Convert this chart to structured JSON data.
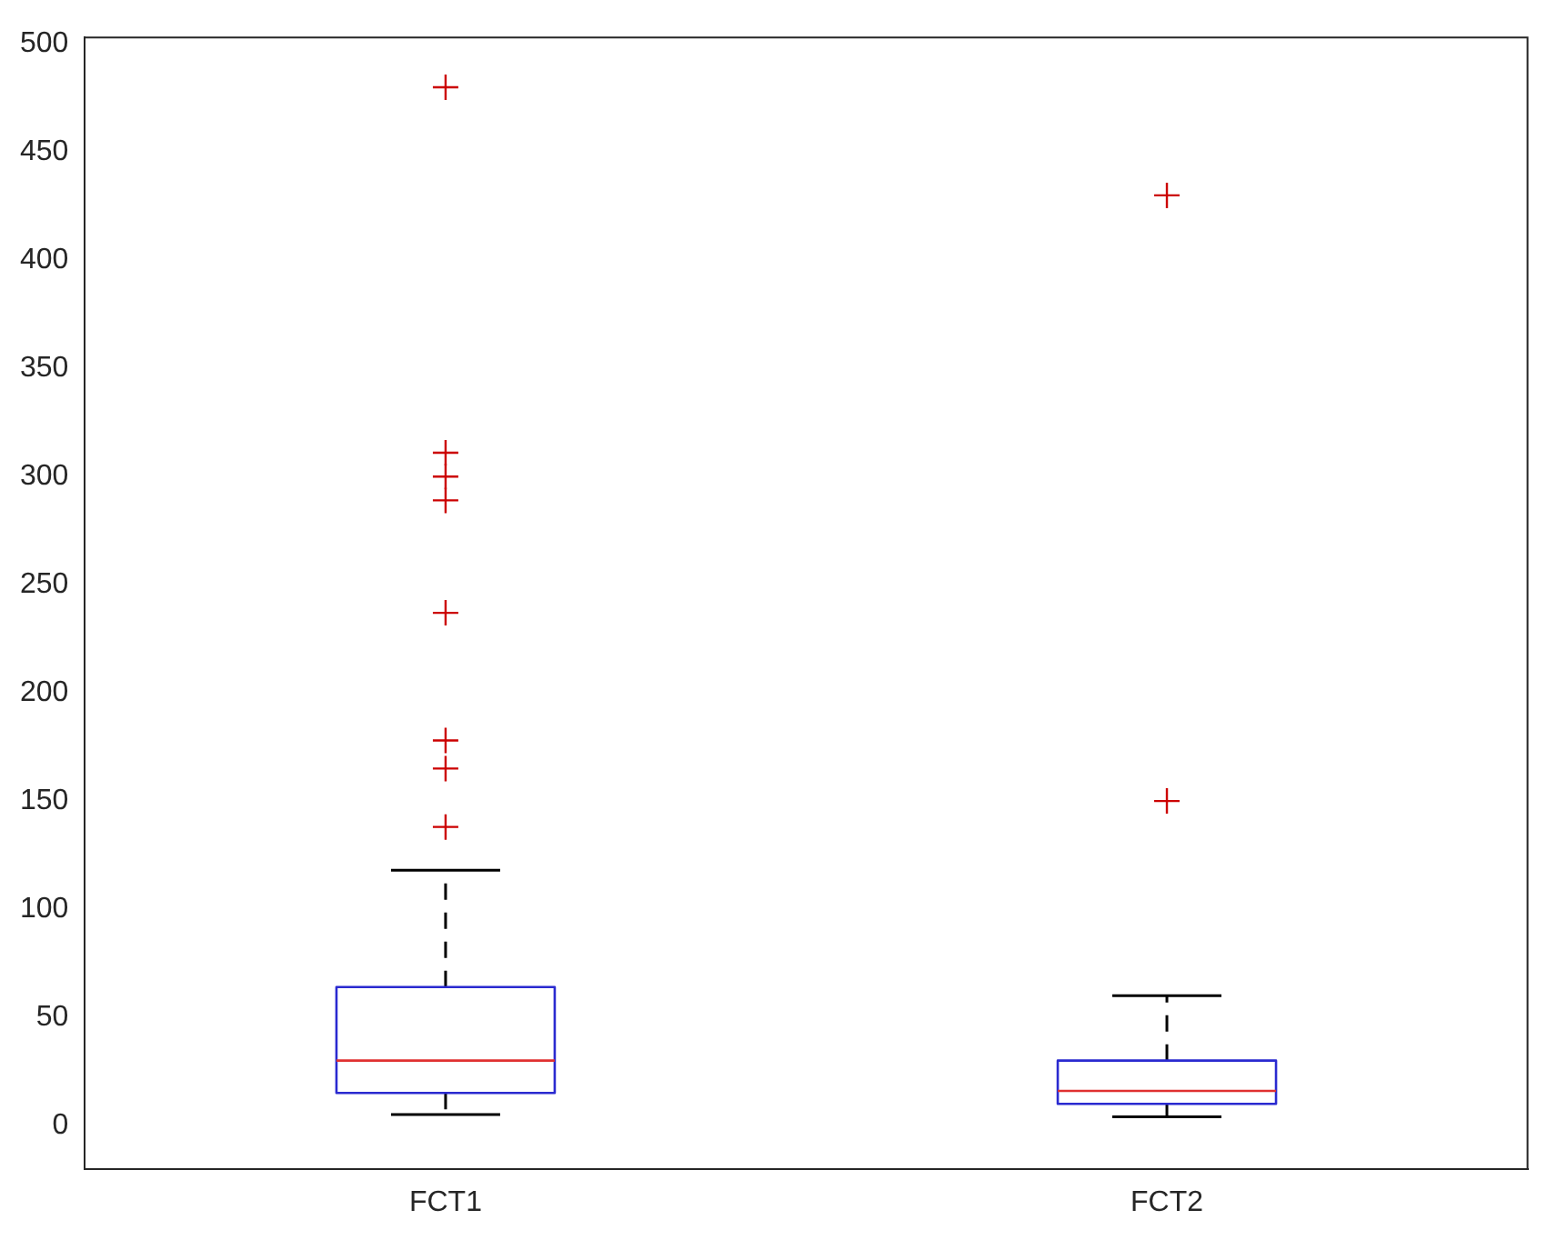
{
  "chart_data": {
    "type": "box",
    "categories": [
      "FCT1",
      "FCT2"
    ],
    "boxes": [
      {
        "low": 5,
        "q1": 15,
        "median": 30,
        "q3": 64,
        "high": 118,
        "outliers": [
          480,
          311,
          300,
          289,
          237,
          178,
          165,
          138
        ]
      },
      {
        "low": 4,
        "q1": 10,
        "median": 16,
        "q3": 30,
        "high": 60,
        "outliers": [
          430,
          150
        ]
      }
    ],
    "color": "#2a2ad0",
    "marker": "cross",
    "grid": false,
    "ylim": [
      -20,
      503
    ],
    "yticks": [
      0,
      50,
      100,
      150,
      200,
      250,
      300,
      350,
      400,
      450,
      500
    ]
  }
}
